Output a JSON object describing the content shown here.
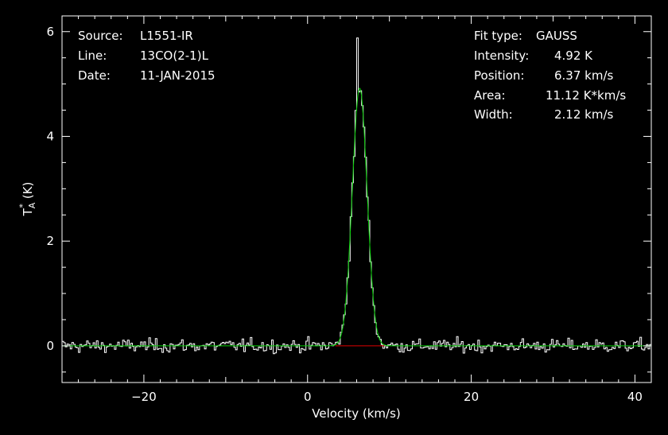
{
  "header_left": {
    "source_label": "Source:",
    "source_value": "L1551-IR",
    "line_label": "Line:",
    "line_value": "13CO(2-1)L",
    "date_label": "Date:",
    "date_value": "11-JAN-2015"
  },
  "header_right": {
    "fit_label": "Fit type:",
    "fit_value": "GAUSS",
    "intensity_label": "Intensity:",
    "intensity_value": "4.92 K",
    "position_label": "Position:",
    "position_value": "6.37 km/s",
    "area_label": "Area:",
    "area_value": "11.12 K*km/s",
    "width_label": "Width:",
    "width_value": "2.12 km/s"
  },
  "chart_data": {
    "type": "line",
    "xlabel": "Velocity (km/s)",
    "ylabel_main": "T",
    "ylabel_sup": "*",
    "ylabel_sub": "A",
    "ylabel_unit": "(K)",
    "xlim": [
      -30,
      42
    ],
    "ylim": [
      -0.7,
      6.3
    ],
    "xticks": [
      -20,
      0,
      20,
      40
    ],
    "xtick_labels": [
      "−20",
      "0",
      "20",
      "40"
    ],
    "yticks": [
      0,
      2,
      4,
      6
    ],
    "ytick_labels": [
      "0",
      "2",
      "4",
      "6"
    ],
    "grid": false,
    "spectrum": {
      "channel_start_velocity": -30,
      "channel_width": 0.2,
      "noise_rms": 0.09,
      "peak_channel_velocity": 6.1,
      "peak_channel_value": 5.88
    },
    "gaussian_fit": {
      "amplitude": 4.92,
      "center": 6.37,
      "fwhm": 2.12,
      "color": "#00d000"
    },
    "fit_window": {
      "from": 3.4,
      "to": 9.4,
      "level": 0,
      "color": "#e00000"
    },
    "frame_color": "#ffffff",
    "spectrum_color": "#ffffff"
  }
}
